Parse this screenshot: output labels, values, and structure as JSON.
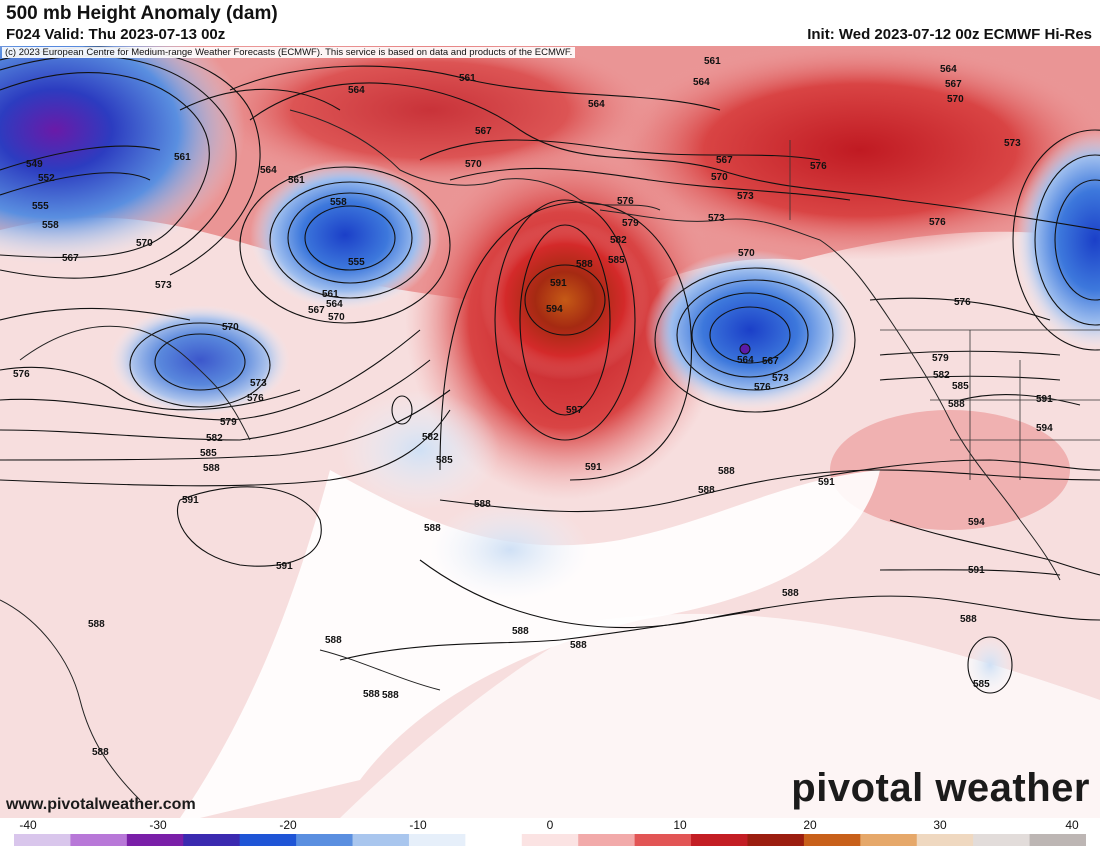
{
  "header": {
    "title": "500 mb Height Anomaly (dam)",
    "valid": "F024 Valid: Thu 2023-07-13 00z",
    "init": "Init: Wed 2023-07-12 00z ECMWF Hi-Res"
  },
  "copyright": "(c) 2023 European Centre for Medium-range Weather Forecasts (ECMWF). This service is based on data and products of the ECMWF.",
  "branding": {
    "logo_text": "pivotal weather",
    "website": "www.pivotalweather.com"
  },
  "colorbar": {
    "ticks": [
      "-40",
      "-30",
      "-20",
      "-10",
      "0",
      "10",
      "20",
      "30",
      "40"
    ],
    "colors": [
      "#d9c6ec",
      "#b878d8",
      "#7a1fa8",
      "#3b2ab0",
      "#1f55d6",
      "#5a8fe0",
      "#a9c6ee",
      "#e6effa",
      "#ffffff",
      "#fbe3e3",
      "#f2aaaa",
      "#e25555",
      "#c31e24",
      "#9b1e10",
      "#c8601a",
      "#e6a86a",
      "#efd8c0",
      "#e2dcda",
      "#bdb6b4"
    ]
  },
  "contour_labels": [
    {
      "text": "561"
    },
    {
      "text": "564"
    },
    {
      "text": "567"
    },
    {
      "text": "570"
    },
    {
      "text": "573"
    },
    {
      "text": "576"
    },
    {
      "text": "579"
    },
    {
      "text": "582"
    },
    {
      "text": "585"
    },
    {
      "text": "588"
    },
    {
      "text": "591"
    },
    {
      "text": "594"
    },
    {
      "text": "597"
    },
    {
      "text": "549"
    },
    {
      "text": "552"
    },
    {
      "text": "555"
    },
    {
      "text": "558"
    }
  ]
}
